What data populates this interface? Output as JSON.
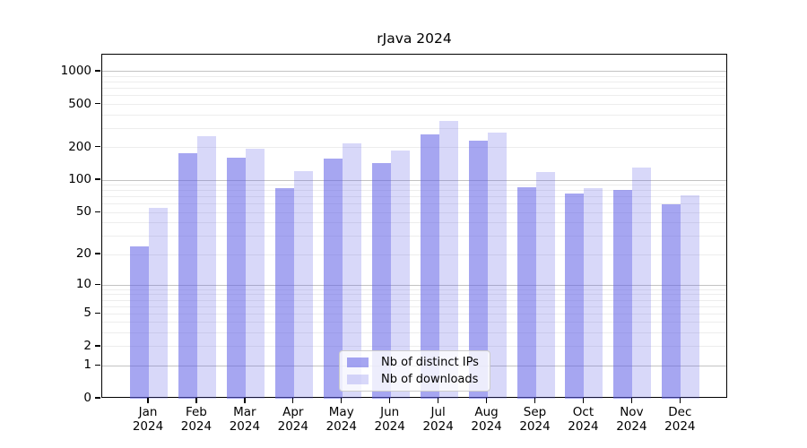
{
  "title": "rJava 2024",
  "chart_data": {
    "type": "bar",
    "title": "rJava 2024",
    "categories": [
      "Jan 2024",
      "Feb 2024",
      "Mar 2024",
      "Apr 2024",
      "May 2024",
      "Jun 2024",
      "Jul 2024",
      "Aug 2024",
      "Sep 2024",
      "Oct 2024",
      "Nov 2024",
      "Dec 2024"
    ],
    "x_tick_months": [
      "Jan",
      "Feb",
      "Mar",
      "Apr",
      "May",
      "Jun",
      "Jul",
      "Aug",
      "Sep",
      "Oct",
      "Nov",
      "Dec"
    ],
    "x_tick_year": "2024",
    "series": [
      {
        "name": "Nb of distinct IPs",
        "values": [
          24,
          177,
          162,
          85,
          160,
          143,
          265,
          230,
          86,
          75,
          81,
          60
        ]
      },
      {
        "name": "Nb of downloads",
        "values": [
          55,
          255,
          195,
          122,
          218,
          188,
          350,
          275,
          119,
          84,
          131,
          73
        ]
      }
    ],
    "yscale": "log1p",
    "ylim": [
      0,
      1432
    ],
    "yticks": [
      0,
      1,
      2,
      5,
      10,
      20,
      50,
      100,
      200,
      500,
      1000
    ],
    "grid": true,
    "legend_position": "inside-bottom-center",
    "xlabel": "",
    "ylabel": ""
  },
  "legend": {
    "items": [
      {
        "label": "Nb of distinct IPs"
      },
      {
        "label": "Nb of downloads"
      }
    ]
  },
  "colors": {
    "background": "#ffffff",
    "axis": "#000000",
    "text": "#000000",
    "grid_major": "#c3c3c3",
    "grid_minor": "#ededed",
    "bar_distinct_ips": "rgba(92,92,230,0.55)",
    "bar_downloads": "rgba(92,92,230,0.24)"
  }
}
